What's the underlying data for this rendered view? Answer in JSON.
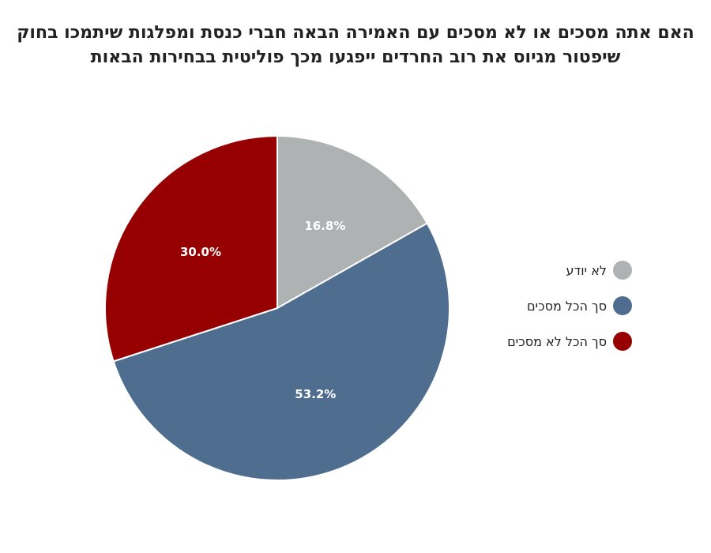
{
  "chart_data": {
    "type": "pie",
    "title_lines": [
      "האם אתה מסכים או לא מסכים עם האמירה הבאה חברי כנסת ומפלגות שיתמכו בחוק",
      "שיפטור מגיוס את רוב החרדים ייפגעו מכך פוליטית בבחירות הבאות"
    ],
    "slices": [
      {
        "label": "לא יודע",
        "value": 16.8,
        "display": "16.8%",
        "color": "#aeb2b2"
      },
      {
        "label": "סך הכל מסכים",
        "value": 53.2,
        "display": "53.2%",
        "color": "#4f6d8f"
      },
      {
        "label": "סך הכל לא מסכים",
        "value": 30.0,
        "display": "30.0%",
        "color": "#960000"
      }
    ],
    "legend_position": "right"
  }
}
